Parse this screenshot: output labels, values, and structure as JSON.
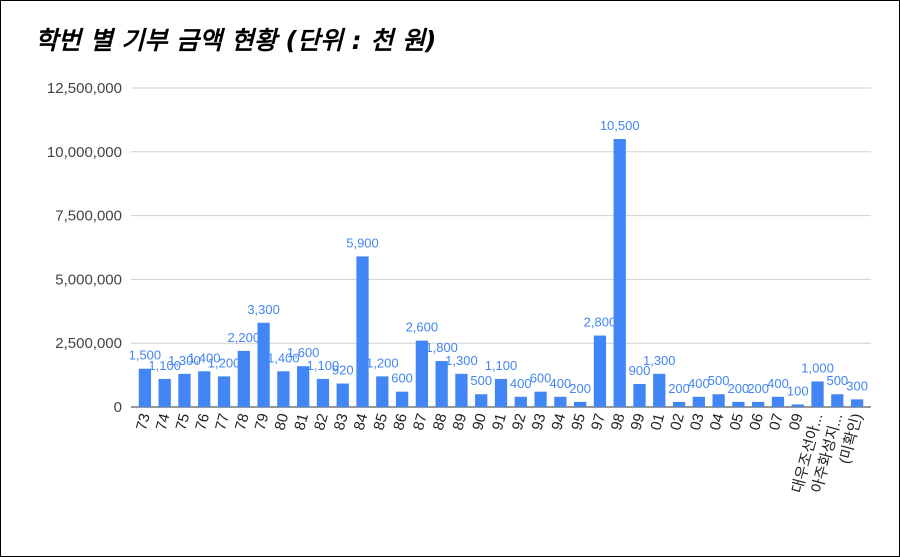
{
  "chart_data": {
    "type": "bar",
    "title": "학번 별 기부 금액 현황 (단위 : 천 원)",
    "xlabel": "",
    "ylabel": "",
    "ylim": [
      0,
      12500000
    ],
    "yticks": [
      "0",
      "2,500,000",
      "5,000,000",
      "7,500,000",
      "10,000,000",
      "12,500,000"
    ],
    "ytick_values": [
      0,
      2500000,
      5000000,
      7500000,
      10000000,
      12500000
    ],
    "grid": true,
    "legend": "none",
    "bar_color": "#4285f4",
    "label_color": "#4285f4",
    "categories": [
      "73",
      "74",
      "75",
      "76",
      "77",
      "78",
      "79",
      "80",
      "81",
      "82",
      "83",
      "84",
      "85",
      "86",
      "87",
      "88",
      "89",
      "90",
      "91",
      "92",
      "93",
      "94",
      "95",
      "97",
      "98",
      "99",
      "01",
      "02",
      "03",
      "04",
      "05",
      "06",
      "07",
      "09",
      "대우조선아...",
      "아주화성지...",
      "(미확인)"
    ],
    "values": [
      1500000,
      1100000,
      1300000,
      1400000,
      1200000,
      2200000,
      3300000,
      1400000,
      1600000,
      1100000,
      920000,
      5900000,
      1200000,
      600000,
      2600000,
      1800000,
      1300000,
      500000,
      1100000,
      400000,
      600000,
      400000,
      200000,
      2800000,
      10500000,
      900000,
      1300000,
      200000,
      400000,
      500000,
      200000,
      200000,
      400000,
      100000,
      1000000,
      500000,
      300000
    ],
    "data_labels": [
      "1,500",
      "1,100",
      "1,300",
      "1,400",
      "1,200",
      "2,200",
      "3,300",
      "1,400",
      "1,600",
      "1,100",
      "920",
      "5,900",
      "1,200",
      "600",
      "2,600",
      "1,800",
      "1,300",
      "500",
      "1,100",
      "400",
      "600",
      "400",
      "200",
      "2,800",
      "10,500",
      "900",
      "1,300",
      "200",
      "400",
      "500",
      "200",
      "200",
      "400",
      "100",
      "1,000",
      "500",
      "300"
    ]
  }
}
